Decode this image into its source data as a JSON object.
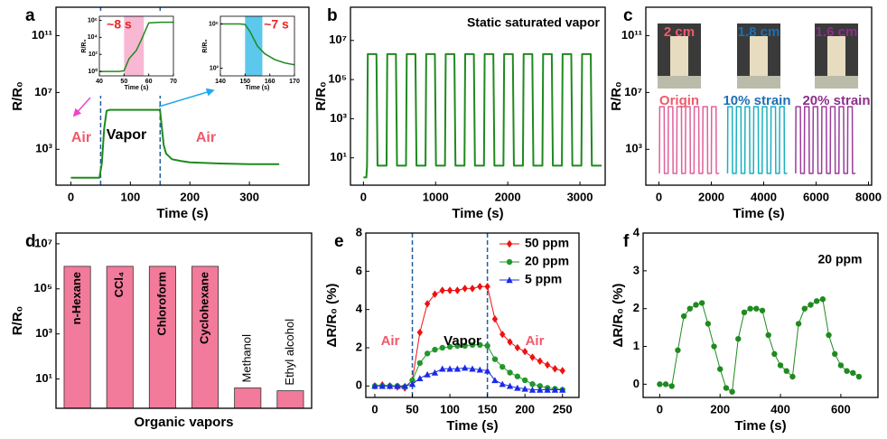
{
  "chart_data": [
    {
      "type": "line",
      "panel": "a",
      "xlabel": "Time (s)",
      "ylabel": "R/R₀",
      "log_y": true,
      "xlim": [
        -25,
        400
      ],
      "ylim": [
        3,
        10000000000000
      ],
      "xticks": [
        0,
        100,
        200,
        300
      ],
      "yticks": [
        {
          "value": 1000,
          "label": "10³"
        },
        {
          "value": 10000000,
          "label": "10⁷"
        },
        {
          "value": 100000000000,
          "label": "10¹¹"
        }
      ],
      "vlines": [
        50,
        150
      ],
      "annotations": [
        "Air",
        "Vapor",
        "Air"
      ],
      "series": [
        {
          "color": "#1f8a1f",
          "x": [
            0,
            45,
            48,
            52,
            56,
            60,
            65,
            100,
            140,
            148,
            150,
            153,
            156,
            160,
            170,
            185,
            200,
            250,
            300,
            350
          ],
          "values": [
            10,
            10,
            10,
            100,
            30000,
            500000,
            600000,
            600000,
            600000,
            600000,
            500000,
            30000,
            2000,
            500,
            200,
            150,
            120,
            100,
            90,
            90
          ]
        }
      ]
    },
    {
      "type": "line",
      "xlabel": "Time (s)",
      "ylabel": "R/R₀",
      "log_y": true,
      "xlim": [
        40,
        70
      ],
      "ylim": [
        0.3,
        3000000
      ],
      "xticks": [
        40,
        50,
        60,
        70
      ],
      "yticks": [
        {
          "value": 1,
          "label": "10⁰"
        },
        {
          "value": 100,
          "label": "10²"
        },
        {
          "value": 10000,
          "label": "10⁴"
        },
        {
          "value": 1000000,
          "label": "10⁶"
        }
      ],
      "span": [
        50,
        58
      ],
      "span_color": "#f8b8d4",
      "annotations": [
        "~8 s"
      ],
      "series": [
        {
          "color": "#1f8a1f",
          "x": [
            40,
            48,
            50,
            52,
            55,
            57,
            60,
            65,
            70
          ],
          "values": [
            1,
            1,
            1.2,
            30,
            300,
            5000,
            500000,
            600000,
            600000
          ]
        }
      ]
    },
    {
      "type": "line",
      "xlabel": "Time (s)",
      "ylabel": "R/R₀",
      "log_y": true,
      "xlim": [
        140,
        170
      ],
      "ylim": [
        20,
        5000000
      ],
      "xticks": [
        140,
        150,
        160,
        170
      ],
      "yticks": [
        {
          "value": 100,
          "label": "10²"
        },
        {
          "value": 1000000,
          "label": "10⁶"
        }
      ],
      "span": [
        150,
        157
      ],
      "span_color": "#5cc8ec",
      "annotations": [
        "~7 s"
      ],
      "series": [
        {
          "color": "#1f8a1f",
          "x": [
            140,
            148,
            150,
            152,
            155,
            158,
            162,
            166,
            170
          ],
          "values": [
            1000000,
            1000000,
            900000,
            200000,
            10000,
            2000,
            600,
            300,
            200
          ]
        }
      ]
    },
    {
      "type": "line",
      "panel": "b",
      "title": "Static saturated vapor",
      "xlabel": "Time (s)",
      "ylabel": "R/R₀",
      "log_y": true,
      "xlim": [
        -180,
        3350
      ],
      "ylim": [
        0.4,
        500000000
      ],
      "xticks": [
        0,
        1000,
        2000,
        3000
      ],
      "yticks": [
        {
          "value": 10,
          "label": "10¹"
        },
        {
          "value": 1000,
          "label": "10³"
        },
        {
          "value": 100000,
          "label": "10⁵"
        },
        {
          "value": 10000000,
          "label": "10⁷"
        }
      ],
      "series": [
        {
          "color": "#1f8a1f",
          "x": [
            0,
            40,
            50,
            60,
            180,
            195,
            320,
            330,
            450,
            465,
            590,
            600,
            720,
            735,
            860,
            870,
            990,
            1005,
            1130,
            1140,
            1260,
            1275,
            1400,
            1410,
            1530,
            1545,
            1670,
            1680,
            1800,
            1815,
            1940,
            1950,
            2070,
            2085,
            2210,
            2220,
            2340,
            2355,
            2480,
            2490,
            2610,
            2625,
            2750,
            2760,
            2880,
            2895,
            3020,
            3030,
            3150,
            3165,
            3300
          ],
          "values": [
            1,
            1,
            4,
            2000000,
            2000000,
            4,
            4,
            2000000,
            2000000,
            4,
            4,
            2000000,
            2000000,
            4,
            4,
            2000000,
            2000000,
            4,
            4,
            2000000,
            2000000,
            4,
            4,
            2000000,
            2000000,
            4,
            4,
            2000000,
            2000000,
            4,
            4,
            2000000,
            2000000,
            4,
            4,
            2000000,
            2000000,
            4,
            4,
            2000000,
            2000000,
            4,
            4,
            2000000,
            2000000,
            4,
            4,
            2000000,
            2000000,
            4,
            4
          ]
        }
      ]
    },
    {
      "type": "line",
      "panel": "c",
      "xlabel": "Time (s)",
      "ylabel": "R/R₀",
      "log_y": true,
      "xlim": [
        -500,
        8120
      ],
      "ylim": [
        3,
        10000000000000
      ],
      "xticks": [
        0,
        2000,
        4000,
        6000,
        8000
      ],
      "yticks": [
        {
          "value": 1000,
          "label": "10³"
        },
        {
          "value": 10000000,
          "label": "10⁷"
        },
        {
          "value": 100000000000,
          "label": "10¹¹"
        }
      ],
      "annotations": [
        "2 cm",
        "1.8 cm",
        "1.6 cm"
      ],
      "series": [
        {
          "name": "Origin",
          "color": "#e0609a",
          "x": [
            20,
            30,
            200,
            210,
            350,
            360,
            530,
            540,
            680,
            690,
            860,
            870,
            1010,
            1020,
            1190,
            1200,
            1340,
            1350,
            1520,
            1530,
            1670,
            1680,
            1850,
            1860,
            2000,
            2010,
            2180,
            2190,
            2300
          ],
          "values": [
            20,
            1000000,
            1000000,
            20,
            20,
            1000000,
            1000000,
            20,
            20,
            1000000,
            1000000,
            20,
            20,
            1000000,
            1000000,
            20,
            20,
            1000000,
            1000000,
            20,
            20,
            1000000,
            1000000,
            20,
            20,
            1000000,
            1000000,
            20,
            20
          ]
        },
        {
          "name": "10% strain",
          "color": "#1ab0c0",
          "x": [
            2620,
            2630,
            2800,
            2810,
            2950,
            2960,
            3130,
            3140,
            3280,
            3290,
            3460,
            3470,
            3610,
            3620,
            3790,
            3800,
            3940,
            3950,
            4120,
            4130,
            4270,
            4280,
            4450,
            4460,
            4600,
            4610,
            4780,
            4790,
            4900
          ],
          "values": [
            20,
            1000000,
            1000000,
            20,
            20,
            1000000,
            1000000,
            20,
            20,
            1000000,
            1000000,
            20,
            20,
            1000000,
            1000000,
            20,
            20,
            1000000,
            1000000,
            20,
            20,
            1000000,
            1000000,
            20,
            20,
            1000000,
            1000000,
            20,
            20
          ]
        },
        {
          "name": "20% strain",
          "color": "#9a3c9a",
          "x": [
            5220,
            5230,
            5400,
            5410,
            5550,
            5560,
            5730,
            5740,
            5880,
            5890,
            6060,
            6070,
            6210,
            6220,
            6390,
            6400,
            6540,
            6550,
            6720,
            6730,
            6870,
            6880,
            7050,
            7060,
            7200,
            7210,
            7380,
            7390,
            7500
          ],
          "values": [
            20,
            1000000,
            1000000,
            20,
            20,
            1000000,
            1000000,
            20,
            20,
            1000000,
            1000000,
            20,
            20,
            1000000,
            1000000,
            20,
            20,
            1000000,
            1000000,
            20,
            20,
            1000000,
            1000000,
            20,
            20,
            1000000,
            1000000,
            20,
            20
          ]
        }
      ]
    },
    {
      "type": "bar",
      "panel": "d",
      "xlabel": "Organic vapors",
      "ylabel": "R/R₀",
      "log_y": true,
      "ylim": [
        0.5,
        30000000
      ],
      "yticks": [
        {
          "value": 10,
          "label": "10¹"
        },
        {
          "value": 1000,
          "label": "10³"
        },
        {
          "value": 100000,
          "label": "10⁵"
        },
        {
          "value": 10000000,
          "label": "10⁷"
        }
      ],
      "categories": [
        "n-Hexane",
        "CCl₄",
        "Chloroform",
        "Cyclohexane",
        "Methanol",
        "Ethyl alcohol"
      ],
      "values": [
        1000000,
        1000000,
        1000000,
        1000000,
        4,
        3
      ],
      "color": "#f27a9a"
    },
    {
      "type": "line",
      "panel": "e",
      "xlabel": "Time (s)",
      "ylabel": "ΔR/R₀ (%)",
      "xlim": [
        -12,
        272
      ],
      "ylim": [
        -0.6,
        8
      ],
      "xticks": [
        0,
        50,
        100,
        150,
        200,
        250
      ],
      "yticks": [
        0,
        2,
        4,
        6,
        8
      ],
      "vlines": [
        50,
        150
      ],
      "annotations": [
        "Air",
        "Vapor",
        "Air"
      ],
      "legend": "upper right",
      "series": [
        {
          "name": "50 ppm",
          "color": "#ee1111",
          "marker": "diamond",
          "x": [
            0,
            10,
            20,
            30,
            40,
            50,
            60,
            70,
            80,
            90,
            100,
            110,
            120,
            130,
            140,
            150,
            160,
            170,
            180,
            190,
            200,
            210,
            220,
            230,
            240,
            250
          ],
          "values": [
            0,
            0.05,
            0,
            -0.05,
            -0.1,
            0.3,
            2.8,
            4.3,
            4.8,
            5,
            5,
            5,
            5.1,
            5.1,
            5.2,
            5.2,
            3.5,
            2.7,
            2.3,
            2,
            1.8,
            1.5,
            1.3,
            1.1,
            0.9,
            0.8
          ]
        },
        {
          "name": "20 ppm",
          "color": "#22962a",
          "marker": "circle",
          "x": [
            0,
            10,
            20,
            30,
            40,
            50,
            60,
            70,
            80,
            90,
            100,
            110,
            120,
            130,
            140,
            150,
            160,
            170,
            180,
            190,
            200,
            210,
            220,
            230,
            240,
            250
          ],
          "values": [
            0,
            0,
            0,
            0,
            -0.05,
            0.3,
            1.2,
            1.7,
            1.9,
            2,
            2.05,
            2.1,
            2.1,
            2.15,
            2.15,
            2.1,
            1.4,
            1,
            0.7,
            0.5,
            0.3,
            0.1,
            0,
            -0.1,
            -0.15,
            -0.2
          ]
        },
        {
          "name": "5 ppm",
          "color": "#1a2ae8",
          "marker": "triangle",
          "x": [
            0,
            10,
            20,
            30,
            40,
            50,
            60,
            70,
            80,
            90,
            100,
            110,
            120,
            130,
            140,
            150,
            160,
            170,
            180,
            190,
            200,
            210,
            220,
            230,
            240,
            250
          ],
          "values": [
            0,
            0,
            0,
            0,
            0,
            0.1,
            0.4,
            0.6,
            0.7,
            0.9,
            0.9,
            0.9,
            0.95,
            0.9,
            0.85,
            0.8,
            0.3,
            0.1,
            0,
            -0.1,
            -0.15,
            -0.2,
            -0.2,
            -0.2,
            -0.2,
            -0.2
          ]
        }
      ]
    },
    {
      "type": "line",
      "panel": "f",
      "xlabel": "Time (s)",
      "ylabel": "ΔR/R₀ (%)",
      "xlim": [
        -55,
        723
      ],
      "ylim": [
        -0.35,
        4
      ],
      "xticks": [
        0,
        200,
        400,
        600
      ],
      "yticks": [
        0,
        1,
        2,
        3,
        4
      ],
      "annotations": [
        "20 ppm"
      ],
      "series": [
        {
          "color": "#1f8a1f",
          "marker": "circle",
          "x": [
            0,
            20,
            40,
            60,
            80,
            100,
            120,
            140,
            160,
            180,
            200,
            220,
            240,
            260,
            280,
            300,
            320,
            340,
            360,
            380,
            400,
            420,
            440,
            460,
            480,
            500,
            520,
            540,
            560,
            580,
            600,
            620,
            640,
            660
          ],
          "values": [
            0,
            0,
            -0.05,
            0.9,
            1.8,
            2,
            2.1,
            2.15,
            1.6,
            1,
            0.4,
            -0.1,
            -0.2,
            1.2,
            1.9,
            2,
            2,
            1.95,
            1.3,
            0.8,
            0.5,
            0.35,
            0.2,
            1.6,
            2,
            2.1,
            2.2,
            2.25,
            1.3,
            0.8,
            0.5,
            0.35,
            0.3,
            0.2
          ]
        }
      ]
    }
  ]
}
